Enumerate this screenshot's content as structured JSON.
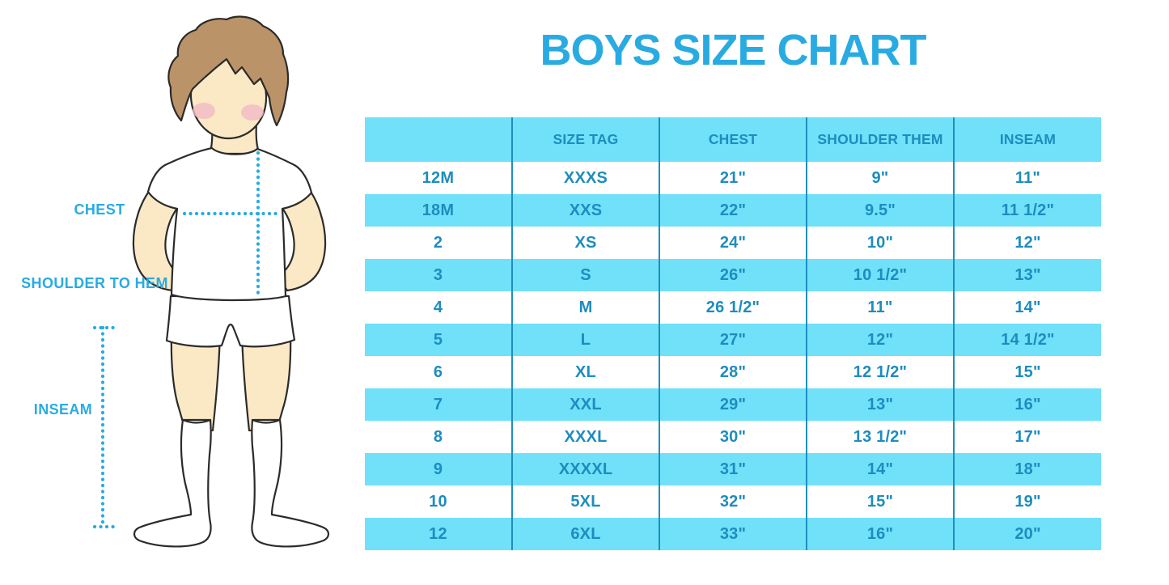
{
  "colors": {
    "accent_blue": "#29abe2",
    "table_bg_blue": "#70e1f9",
    "table_text_blue": "#1e8cbe",
    "divider_blue": "#1d8fc0",
    "skin": "#fbe9c5",
    "hair": "#bb9368",
    "blush": "#f2b9c4",
    "outline": "#2b2b2b"
  },
  "diagram": {
    "labels": {
      "chest": "CHEST",
      "shoulder_to_hem": "SHOULDER TO HEM",
      "inseam": "INSEAM"
    }
  },
  "chart_data": {
    "type": "table",
    "title": "BOYS SIZE CHART",
    "columns": [
      "",
      "SIZE TAG",
      "CHEST",
      "SHOULDER THEM",
      "INSEAM"
    ],
    "rows": [
      [
        "12M",
        "XXXS",
        "21\"",
        "9\"",
        "11\""
      ],
      [
        "18M",
        "XXS",
        "22\"",
        "9.5\"",
        "11 1/2\""
      ],
      [
        "2",
        "XS",
        "24\"",
        "10\"",
        "12\""
      ],
      [
        "3",
        "S",
        "26\"",
        "10 1/2\"",
        "13\""
      ],
      [
        "4",
        "M",
        "26 1/2\"",
        "11\"",
        "14\""
      ],
      [
        "5",
        "L",
        "27\"",
        "12\"",
        "14 1/2\""
      ],
      [
        "6",
        "XL",
        "28\"",
        "12 1/2\"",
        "15\""
      ],
      [
        "7",
        "XXL",
        "29\"",
        "13\"",
        "16\""
      ],
      [
        "8",
        "XXXL",
        "30\"",
        "13 1/2\"",
        "17\""
      ],
      [
        "9",
        "XXXXL",
        "31\"",
        "14\"",
        "18\""
      ],
      [
        "10",
        "5XL",
        "32\"",
        "15\"",
        "19\""
      ],
      [
        "12",
        "6XL",
        "33\"",
        "16\"",
        "20\""
      ]
    ],
    "row_striping": [
      "white",
      "blue"
    ],
    "legend_position": "none",
    "grid": "column-dividers-only"
  }
}
